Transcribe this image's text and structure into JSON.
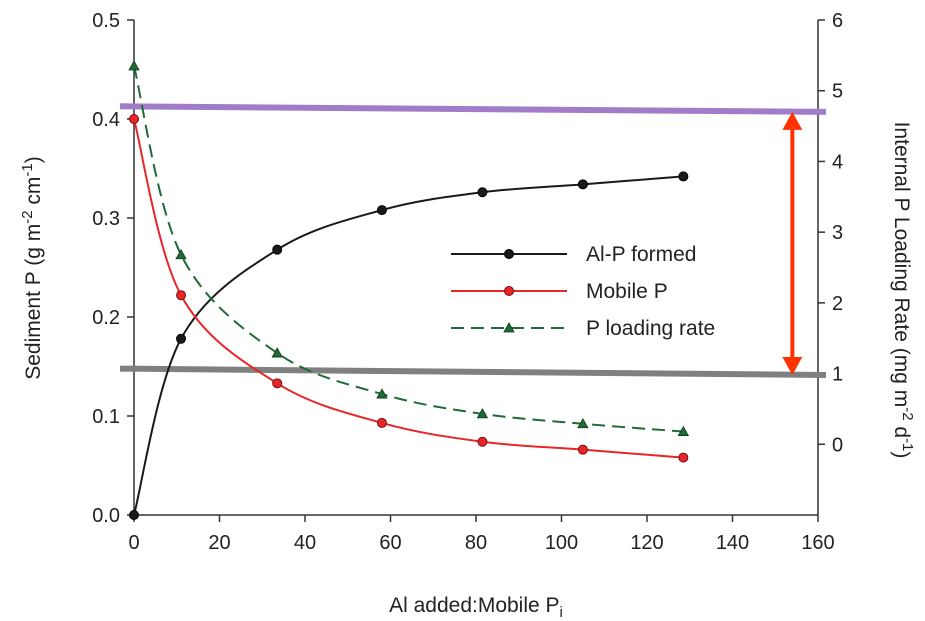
{
  "chart_data": {
    "type": "line",
    "title": "",
    "xlabel": {
      "main": "Al added:Mobile P",
      "sub": "i"
    },
    "ylabel_left": {
      "part1": "Sediment P (g m",
      "sup1": "-2",
      "part2": " cm",
      "sup2": "-1",
      "part3": ")"
    },
    "ylabel_right": {
      "part1": "Internal P Loading Rate (mg m",
      "sup1": "-2",
      "part2": " d",
      "sup2": "-1",
      "part3": ")"
    },
    "xlim": [
      0,
      160
    ],
    "ylim_left": [
      0,
      0.5
    ],
    "ylim_right": [
      -1,
      6
    ],
    "x_ticks": [
      "0",
      "20",
      "40",
      "60",
      "80",
      "100",
      "120",
      "140",
      "160"
    ],
    "y_left_ticks": [
      "0.0",
      "0.1",
      "0.2",
      "0.3",
      "0.4",
      "0.5"
    ],
    "y_right_ticks": [
      "0",
      "1",
      "2",
      "3",
      "4",
      "5",
      "6"
    ],
    "legend_position": "center-right",
    "series": [
      {
        "name": "Al-P formed",
        "axis": "left",
        "color": "#1a1a1a",
        "marker": "circle",
        "dash": "solid",
        "x": [
          0,
          11,
          33.5,
          58,
          81.5,
          105,
          128.5
        ],
        "y": [
          0.0,
          0.178,
          0.268,
          0.308,
          0.326,
          0.334,
          0.342
        ]
      },
      {
        "name": "Mobile P",
        "axis": "left",
        "color": "#e8262a",
        "marker": "circle",
        "dash": "solid",
        "x": [
          0,
          11,
          33.5,
          58,
          81.5,
          105,
          128.5
        ],
        "y": [
          0.4,
          0.222,
          0.133,
          0.093,
          0.074,
          0.066,
          0.058
        ]
      },
      {
        "name": "P loading rate",
        "axis": "right",
        "color": "#1e6b35",
        "marker": "triangle",
        "dash": "dashed",
        "x": [
          0,
          11,
          33.5,
          58,
          81.5,
          105,
          128.5
        ],
        "y": [
          5.35,
          2.68,
          1.29,
          0.71,
          0.43,
          0.29,
          0.18
        ]
      }
    ],
    "reference_lines": [
      {
        "axis": "right",
        "y_start": 4.78,
        "y_end": 4.7,
        "color": "#a07cc9"
      },
      {
        "axis": "right",
        "y_start": 1.07,
        "y_end": 0.98,
        "color": "#808080"
      }
    ],
    "annotation_arrow": {
      "x": 154,
      "y_from": 4.7,
      "y_to": 0.98,
      "axis": "right",
      "color": "#ff3300"
    }
  }
}
